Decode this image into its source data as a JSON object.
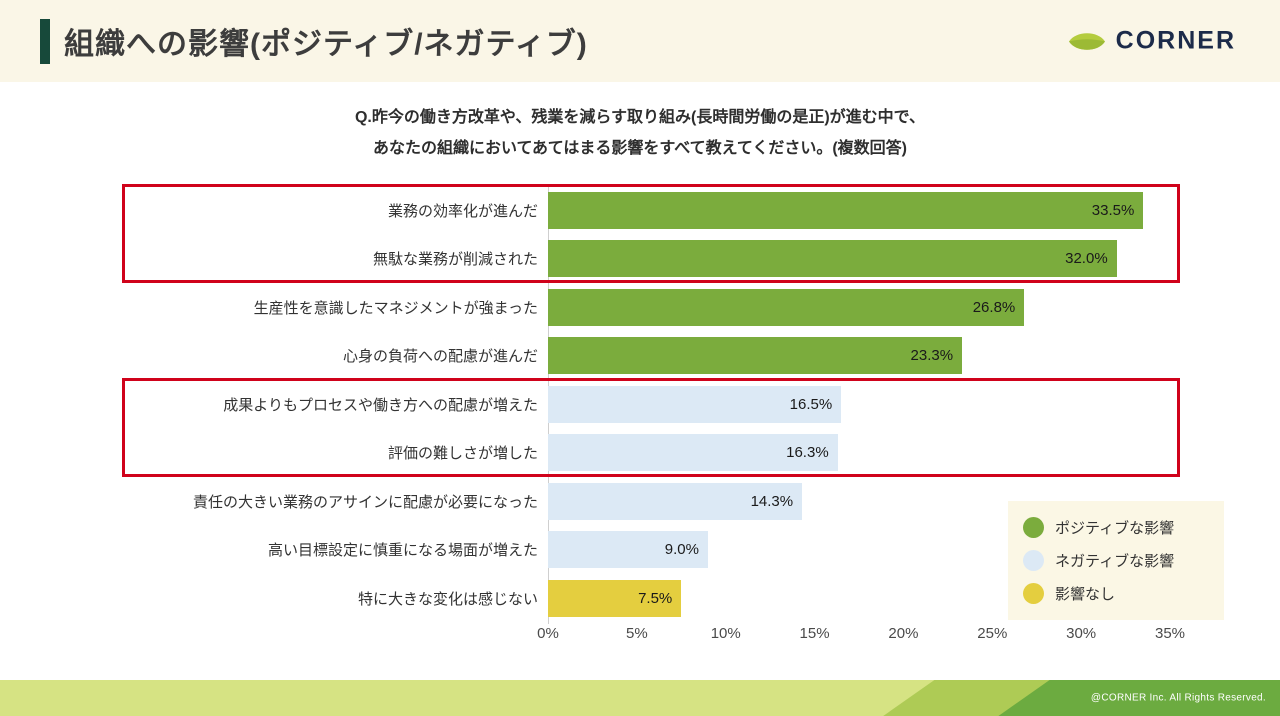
{
  "header": {
    "title": "組織への影響(ポジティブ/ネガティブ)",
    "logo_text": "CORNER"
  },
  "question": {
    "line1": "Q.昨今の働き方改革や、残業を減らす取り組み(長時間労働の是正)が進む中で、",
    "line2": "あなたの組織においてあてはまる影響をすべて教えてください。(複数回答)"
  },
  "chart_data": {
    "type": "bar",
    "orientation": "horizontal",
    "categories": [
      "業務の効率化が進んだ",
      "無駄な業務が削減された",
      "生産性を意識したマネジメントが強まった",
      "心身の負荷への配慮が進んだ",
      "成果よりもプロセスや働き方への配慮が増えた",
      "評価の難しさが増した",
      "責任の大きい業務のアサインに配慮が必要になった",
      "高い目標設定に慎重になる場面が増えた",
      "特に大きな変化は感じない"
    ],
    "values": [
      33.5,
      32.0,
      26.8,
      23.3,
      16.5,
      16.3,
      14.3,
      9.0,
      7.5
    ],
    "value_labels": [
      "33.5%",
      "32.0%",
      "26.8%",
      "23.3%",
      "16.5%",
      "16.3%",
      "14.3%",
      "9.0%",
      "7.5%"
    ],
    "bar_groups": [
      "positive",
      "positive",
      "positive",
      "positive",
      "negative",
      "negative",
      "negative",
      "negative",
      "none"
    ],
    "colors": {
      "positive": "#7BAC3D",
      "negative": "#DCE9F5",
      "none": "#E4CE3F"
    },
    "xlim": [
      0,
      35
    ],
    "x_ticks": [
      "0%",
      "5%",
      "10%",
      "15%",
      "20%",
      "25%",
      "30%",
      "35%"
    ],
    "grid": false,
    "legend_position": "bottom-right",
    "highlight_color": "#D0021B",
    "highlighted_rows": [
      [
        0,
        1
      ],
      [
        4,
        5
      ]
    ]
  },
  "legend": {
    "items": [
      {
        "label": "ポジティブな影響",
        "group": "positive",
        "color": "#7BAC3D"
      },
      {
        "label": "ネガティブな影響",
        "group": "negative",
        "color": "#DCE9F5"
      },
      {
        "label": "影響なし",
        "group": "none",
        "color": "#E4CE3F"
      }
    ]
  },
  "footer": {
    "copyright": "@CORNER Inc. All Rights Reserved."
  }
}
